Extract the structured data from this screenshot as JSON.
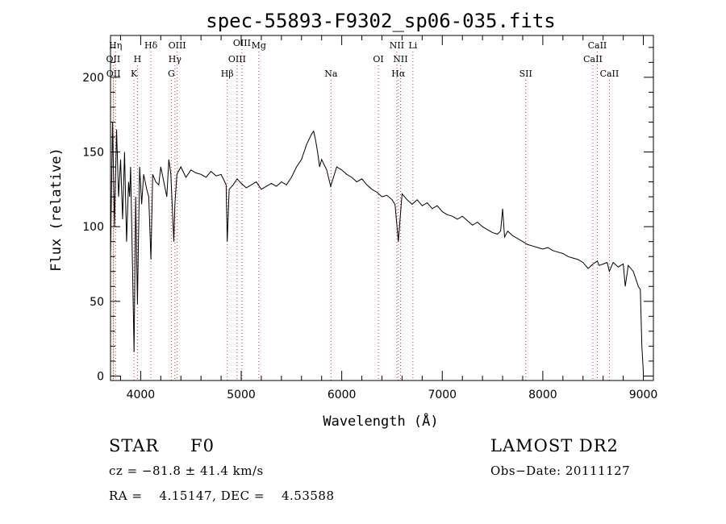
{
  "chart_data": {
    "type": "line",
    "title": "spec-55893-F9302_sp06-035.fits",
    "xlabel": "Wavelength (Å)",
    "ylabel": "Flux (relative)",
    "xlim": [
      3700,
      9100
    ],
    "ylim": [
      -3,
      228
    ],
    "xticks": [
      4000,
      5000,
      6000,
      7000,
      8000,
      9000
    ],
    "yticks": [
      0,
      50,
      100,
      150,
      200
    ],
    "grid": false,
    "series": [
      {
        "x": [
          3700,
          3720,
          3740,
          3760,
          3780,
          3800,
          3820,
          3840,
          3860,
          3880,
          3890,
          3900,
          3920,
          3934,
          3950,
          3968,
          3990,
          4010,
          4030,
          4060,
          4080,
          4102,
          4120,
          4150,
          4180,
          4200,
          4230,
          4260,
          4280,
          4300,
          4330,
          4340,
          4360,
          4400,
          4450,
          4500,
          4550,
          4600,
          4650,
          4700,
          4750,
          4800,
          4850,
          4861,
          4880,
          4920,
          4960,
          5000,
          5050,
          5100,
          5150,
          5200,
          5250,
          5300,
          5350,
          5400,
          5450,
          5500,
          5550,
          5600,
          5650,
          5700,
          5720,
          5740,
          5760,
          5780,
          5800,
          5850,
          5890,
          5950,
          6000,
          6050,
          6100,
          6150,
          6200,
          6250,
          6300,
          6350,
          6400,
          6450,
          6500,
          6530,
          6563,
          6600,
          6650,
          6700,
          6750,
          6800,
          6850,
          6900,
          6950,
          7000,
          7050,
          7100,
          7150,
          7200,
          7250,
          7300,
          7350,
          7400,
          7450,
          7500,
          7550,
          7580,
          7600,
          7620,
          7650,
          7700,
          7750,
          7800,
          7850,
          7900,
          7950,
          8000,
          8050,
          8100,
          8150,
          8200,
          8250,
          8300,
          8350,
          8400,
          8450,
          8500,
          8542,
          8560,
          8600,
          8640,
          8662,
          8700,
          8750,
          8800,
          8820,
          8850,
          8900,
          8950,
          8970,
          8985,
          9000
        ],
        "y": [
          80,
          170,
          100,
          165,
          120,
          145,
          105,
          150,
          90,
          130,
          120,
          140,
          70,
          16,
          120,
          48,
          140,
          115,
          135,
          125,
          120,
          78,
          135,
          130,
          128,
          140,
          130,
          120,
          145,
          135,
          90,
          115,
          135,
          140,
          133,
          138,
          136,
          135,
          133,
          137,
          134,
          135,
          128,
          90,
          125,
          128,
          132,
          129,
          126,
          128,
          130,
          125,
          127,
          129,
          127,
          130,
          128,
          133,
          140,
          145,
          155,
          162,
          164,
          158,
          150,
          140,
          145,
          138,
          127,
          140,
          138,
          135,
          133,
          130,
          132,
          128,
          125,
          123,
          120,
          121,
          118,
          115,
          90,
          122,
          118,
          115,
          118,
          114,
          116,
          112,
          114,
          110,
          108,
          107,
          105,
          107,
          104,
          101,
          103,
          100,
          98,
          96,
          95,
          97,
          112,
          93,
          97,
          94,
          92,
          90,
          88,
          87,
          86,
          85,
          86,
          84,
          83,
          82,
          80,
          79,
          78,
          76,
          72,
          75,
          77,
          74,
          75,
          76,
          70,
          76,
          73,
          75,
          60,
          74,
          70,
          60,
          58,
          20,
          3
        ]
      }
    ],
    "line_markers": [
      {
        "name": "OII",
        "x": 3727,
        "row": 2
      },
      {
        "name": "OII",
        "x": 3729,
        "row": 3
      },
      {
        "name": "Hη",
        "x": 3750,
        "row": 1
      },
      {
        "name": "H",
        "x": 3968,
        "row": 2
      },
      {
        "name": "K",
        "x": 3934,
        "row": 3
      },
      {
        "name": "Hδ",
        "x": 4102,
        "row": 1
      },
      {
        "name": "OIII",
        "x": 4363,
        "row": 1
      },
      {
        "name": "Hγ",
        "x": 4341,
        "row": 2
      },
      {
        "name": "G",
        "x": 4305,
        "row": 3
      },
      {
        "name": "Hβ",
        "x": 4861,
        "row": 3
      },
      {
        "name": "OIII",
        "x": 4959,
        "row": 2
      },
      {
        "name": "OIII",
        "x": 5007,
        "row": 0
      },
      {
        "name": "Mg",
        "x": 5175,
        "row": 1
      },
      {
        "name": "Na",
        "x": 5893,
        "row": 3
      },
      {
        "name": "OI",
        "x": 6364,
        "row": 2
      },
      {
        "name": "NII",
        "x": 6548,
        "row": 1
      },
      {
        "name": "NII",
        "x": 6584,
        "row": 2
      },
      {
        "name": "Hα",
        "x": 6563,
        "row": 3
      },
      {
        "name": "Li",
        "x": 6708,
        "row": 1
      },
      {
        "name": "SII",
        "x": 7830,
        "row": 3
      },
      {
        "name": "CaII",
        "x": 8542,
        "row": 1
      },
      {
        "name": "CaII",
        "x": 8498,
        "row": 2
      },
      {
        "name": "CaII",
        "x": 8662,
        "row": 3
      }
    ]
  },
  "info": {
    "object_class": "STAR",
    "subclass": "F0",
    "survey": "LAMOST DR2",
    "cz": "cz = −81.8 ± 41.4 km/s",
    "obs_date": "Obs−Date: 20111127",
    "coords": "RA =    4.15147, DEC =    4.53588"
  }
}
